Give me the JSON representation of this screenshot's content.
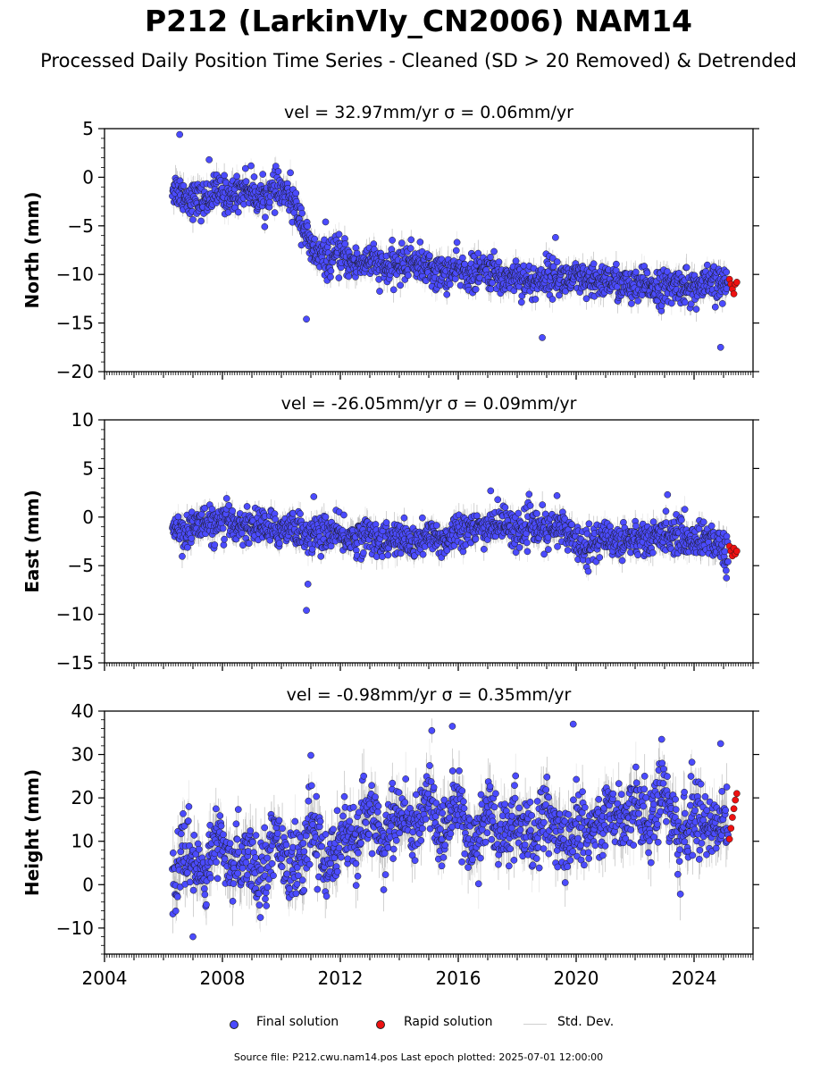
{
  "title": "P212 (LarkinVly_CN2006) NAM14",
  "subtitle": "Processed Daily Position Time Series - Cleaned (SD > 20 Removed) & Detrended",
  "footer": "Source file: P212.cwu.nam14.pos  Last epoch plotted: 2025-07-01 12:00:00",
  "legend": {
    "final": "Final solution",
    "rapid": "Rapid solution",
    "std": "Std. Dev."
  },
  "colors": {
    "final": "#4b4bff",
    "rapid": "#ee1111",
    "std": "#bdbdbd"
  },
  "chart_data": [
    {
      "type": "scatter",
      "title": "vel = 32.97mm/yr   σ = 0.06mm/yr",
      "ylabel": "North (mm)",
      "ylim": [
        -20,
        5
      ],
      "yticks": [
        -20,
        -15,
        -10,
        -5,
        0,
        5
      ],
      "xlim": [
        2004,
        2026
      ],
      "xticks": [
        "2004",
        "2008",
        "2012",
        "2016",
        "2020",
        "2024"
      ],
      "show_xtick_labels": false,
      "series": [
        {
          "name": "Final solution",
          "x": [
            2006.3,
            2006.8,
            2007.3,
            2007.8,
            2008.3,
            2008.8,
            2009.3,
            2009.8,
            2010.3,
            2010.7,
            2011.0,
            2011.5,
            2012.0,
            2012.5,
            2013.0,
            2013.5,
            2014.0,
            2014.5,
            2015.0,
            2015.5,
            2016.0,
            2016.5,
            2017.0,
            2017.5,
            2018.0,
            2018.5,
            2019.0,
            2019.5,
            2020.0,
            2020.5,
            2021.0,
            2021.5,
            2022.0,
            2022.5,
            2023.0,
            2023.5,
            2024.0,
            2024.5,
            2025.0
          ],
          "y": [
            -1.0,
            -2.0,
            -2.5,
            -1.5,
            -2.0,
            -1.0,
            -2.2,
            -1.3,
            -2.0,
            -4.5,
            -7.5,
            -8.5,
            -8.0,
            -9.0,
            -8.5,
            -9.5,
            -9.0,
            -8.5,
            -9.5,
            -10.0,
            -9.5,
            -10.0,
            -9.5,
            -10.5,
            -10.0,
            -11.0,
            -10.0,
            -10.5,
            -10.5,
            -11.0,
            -10.5,
            -11.0,
            -11.5,
            -11.0,
            -11.5,
            -11.0,
            -11.5,
            -11.0,
            -11.0
          ]
        },
        {
          "name": "Rapid solution",
          "x": [
            2025.2,
            2025.25,
            2025.3,
            2025.35,
            2025.4,
            2025.45
          ],
          "y": [
            -10.5,
            -11.0,
            -11.5,
            -12.0,
            -11.0,
            -10.8
          ]
        }
      ],
      "outliers": {
        "x": [
          2006.55,
          2007.55,
          2010.85,
          2011.5,
          2018.85,
          2019.3,
          2024.9
        ],
        "y": [
          4.4,
          1.8,
          -14.6,
          -4.6,
          -16.5,
          -6.2,
          -17.5
        ]
      }
    },
    {
      "type": "scatter",
      "title": "vel = -26.05mm/yr   σ = 0.09mm/yr",
      "ylabel": "East (mm)",
      "ylim": [
        -15,
        10
      ],
      "yticks": [
        -15,
        -10,
        -5,
        0,
        5,
        10
      ],
      "xlim": [
        2004,
        2026
      ],
      "xticks": [
        "2004",
        "2008",
        "2012",
        "2016",
        "2020",
        "2024"
      ],
      "show_xtick_labels": false,
      "series": [
        {
          "name": "Final solution",
          "x": [
            2006.3,
            2006.8,
            2007.3,
            2007.8,
            2008.3,
            2008.8,
            2009.3,
            2009.8,
            2010.3,
            2010.7,
            2011.0,
            2011.5,
            2012.0,
            2012.5,
            2013.0,
            2013.5,
            2014.0,
            2014.5,
            2015.0,
            2015.5,
            2016.0,
            2016.5,
            2017.0,
            2017.5,
            2018.0,
            2018.5,
            2019.0,
            2019.5,
            2020.0,
            2020.5,
            2021.0,
            2021.5,
            2022.0,
            2022.5,
            2023.0,
            2023.5,
            2024.0,
            2024.5,
            2025.0
          ],
          "y": [
            -1.0,
            -1.5,
            -0.5,
            -1.0,
            -0.5,
            -1.0,
            -0.8,
            -1.5,
            -0.8,
            -1.5,
            -2.0,
            -1.5,
            -2.0,
            -2.2,
            -1.8,
            -2.5,
            -2.2,
            -2.8,
            -2.0,
            -2.5,
            -1.0,
            -1.5,
            -1.0,
            -0.5,
            -1.5,
            -1.0,
            -1.5,
            -1.0,
            -2.5,
            -3.0,
            -2.0,
            -2.5,
            -2.0,
            -2.5,
            -1.5,
            -2.0,
            -2.5,
            -2.0,
            -3.5
          ]
        },
        {
          "name": "Rapid solution",
          "x": [
            2025.2,
            2025.25,
            2025.3,
            2025.35,
            2025.4,
            2025.45
          ],
          "y": [
            -3.0,
            -3.5,
            -4.0,
            -3.2,
            -3.8,
            -3.5
          ]
        }
      ],
      "outliers": {
        "x": [
          2010.85,
          2010.9,
          2011.1,
          2017.1,
          2019.35,
          2023.1
        ],
        "y": [
          -9.6,
          -6.9,
          2.1,
          2.7,
          2.2,
          2.3
        ]
      }
    },
    {
      "type": "scatter",
      "title": "vel = -0.98mm/yr   σ = 0.35mm/yr",
      "ylabel": "Height (mm)",
      "ylim": [
        -16,
        40
      ],
      "yticks": [
        -10,
        0,
        10,
        20,
        30,
        40
      ],
      "xlim": [
        2004,
        2026
      ],
      "xticks": [
        "2004",
        "2008",
        "2012",
        "2016",
        "2020",
        "2024"
      ],
      "show_xtick_labels": true,
      "series": [
        {
          "name": "Final solution",
          "x": [
            2006.3,
            2006.8,
            2007.3,
            2007.8,
            2008.3,
            2008.8,
            2009.3,
            2009.8,
            2010.3,
            2010.7,
            2011.0,
            2011.5,
            2012.0,
            2012.5,
            2013.0,
            2013.5,
            2014.0,
            2014.5,
            2015.0,
            2015.5,
            2016.0,
            2016.5,
            2017.0,
            2017.5,
            2018.0,
            2018.5,
            2019.0,
            2019.5,
            2020.0,
            2020.5,
            2021.0,
            2021.5,
            2022.0,
            2022.5,
            2023.0,
            2023.5,
            2024.0,
            2024.5,
            2025.0
          ],
          "y": [
            0,
            8,
            2,
            10,
            3,
            9,
            1,
            12,
            5,
            3,
            15,
            4,
            12,
            8,
            18,
            10,
            17,
            11,
            20,
            12,
            19,
            8,
            17,
            10,
            16,
            9,
            17,
            8,
            14,
            11,
            18,
            14,
            20,
            13,
            24,
            8,
            18,
            12,
            17
          ]
        },
        {
          "name": "Rapid solution",
          "x": [
            2025.2,
            2025.25,
            2025.3,
            2025.35,
            2025.4,
            2025.45
          ],
          "y": [
            10.5,
            13.0,
            15.5,
            17.5,
            19.5,
            21.0
          ]
        }
      ],
      "outliers": {
        "x": [
          2011.0,
          2015.8,
          2019.9,
          2022.9,
          2024.9,
          2007.0
        ],
        "y": [
          29.8,
          36.5,
          37.0,
          33.5,
          32.5,
          -12.0
        ]
      }
    }
  ]
}
